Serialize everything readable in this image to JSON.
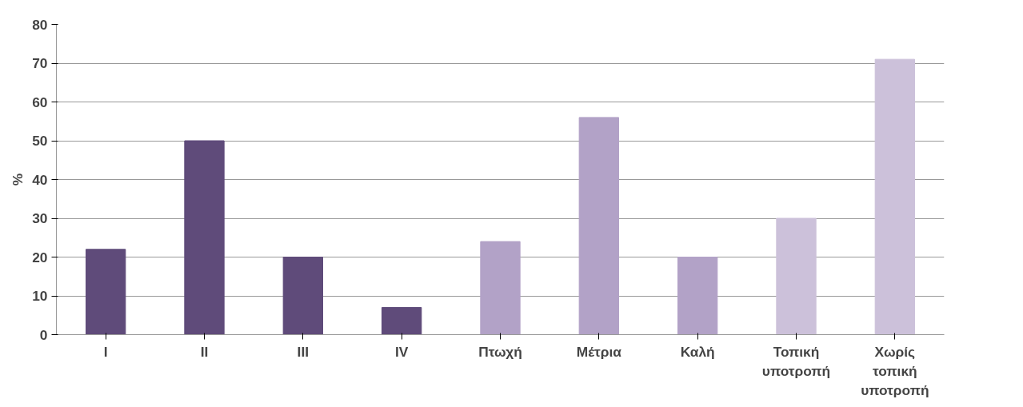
{
  "chart_data": {
    "type": "bar",
    "ylabel": "%",
    "categories": [
      "I",
      "II",
      "III",
      "IV",
      "Πτωχή",
      "Μέτρια",
      "Καλή",
      "Τοπική υποτροπή",
      "Χωρίς τοπική υποτροπή"
    ],
    "values": [
      22,
      50,
      20,
      7,
      24,
      56,
      20,
      30,
      71
    ],
    "colors": [
      "#5f4b7a",
      "#5f4b7a",
      "#5f4b7a",
      "#5f4b7a",
      "#b2a2c7",
      "#b2a2c7",
      "#b2a2c7",
      "#ccc1da",
      "#ccc1da"
    ],
    "ylim": [
      0,
      80
    ],
    "yticks": [
      0,
      10,
      20,
      30,
      40,
      50,
      60,
      70,
      80
    ],
    "grid": "y"
  }
}
